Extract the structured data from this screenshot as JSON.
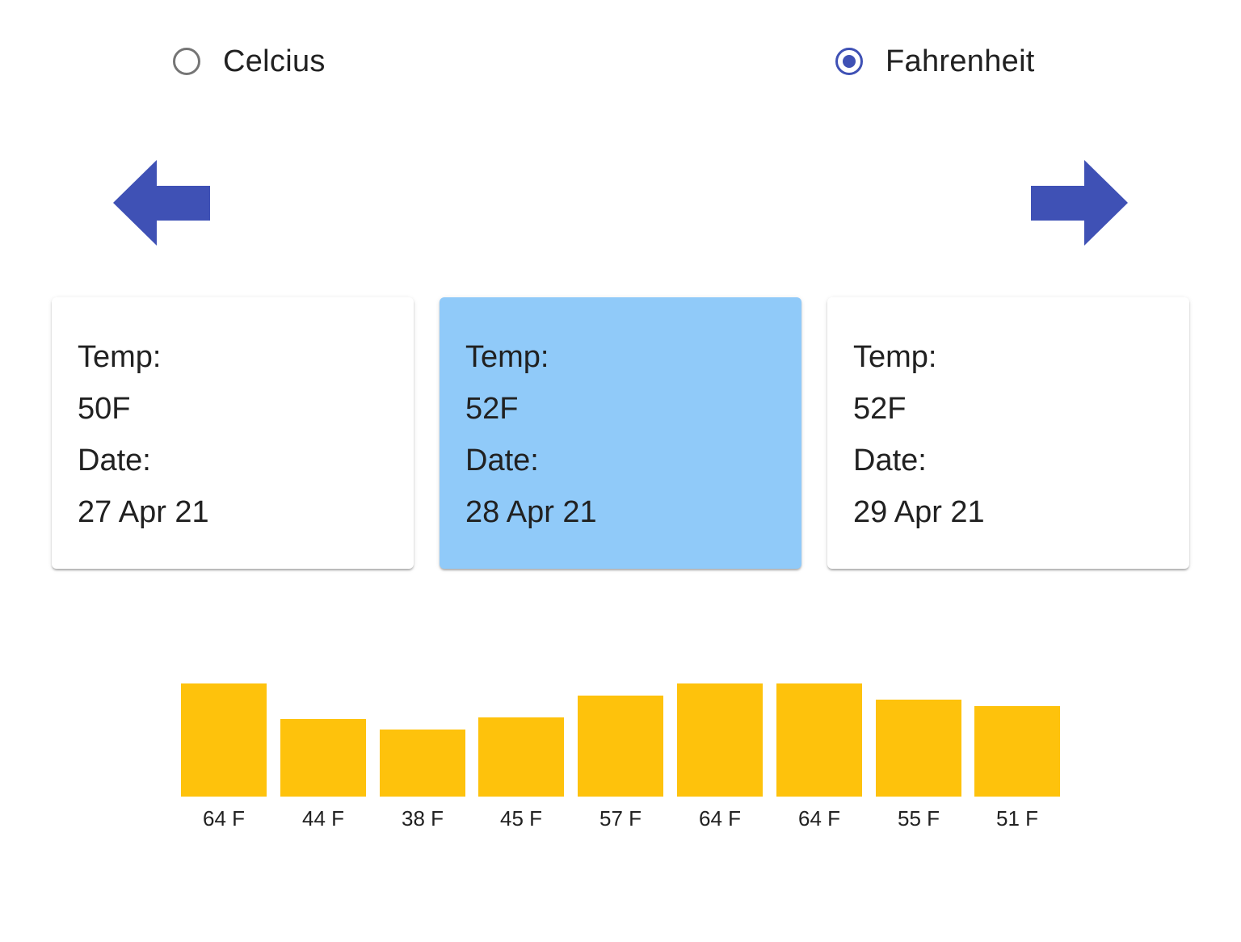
{
  "units": {
    "selected": "fahrenheit",
    "options": [
      {
        "id": "celcius",
        "label": "Celcius",
        "checked": false
      },
      {
        "id": "fahrenheit",
        "label": "Fahrenheit",
        "checked": true
      }
    ]
  },
  "navigation": {
    "prev_icon": "arrow-left-icon",
    "next_icon": "arrow-right-icon",
    "arrow_color": "#3f51b5"
  },
  "cards": [
    {
      "temp_label": "Temp:",
      "temp_value": "50F",
      "date_label": "Date:",
      "date_value": "27 Apr 21",
      "selected": false
    },
    {
      "temp_label": "Temp:",
      "temp_value": "52F",
      "date_label": "Date:",
      "date_value": "28 Apr 21",
      "selected": true
    },
    {
      "temp_label": "Temp:",
      "temp_value": "52F",
      "date_label": "Date:",
      "date_value": "29 Apr 21",
      "selected": false
    }
  ],
  "colors": {
    "selected_card": "#90caf9",
    "bar": "#fec20c"
  },
  "chart_data": {
    "type": "bar",
    "categories": [
      "64 F",
      "44 F",
      "38 F",
      "45 F",
      "57 F",
      "64 F",
      "64 F",
      "55 F",
      "51 F"
    ],
    "values": [
      64,
      44,
      38,
      45,
      57,
      64,
      64,
      55,
      51
    ],
    "title": "",
    "xlabel": "",
    "ylabel": "",
    "grid": false
  }
}
